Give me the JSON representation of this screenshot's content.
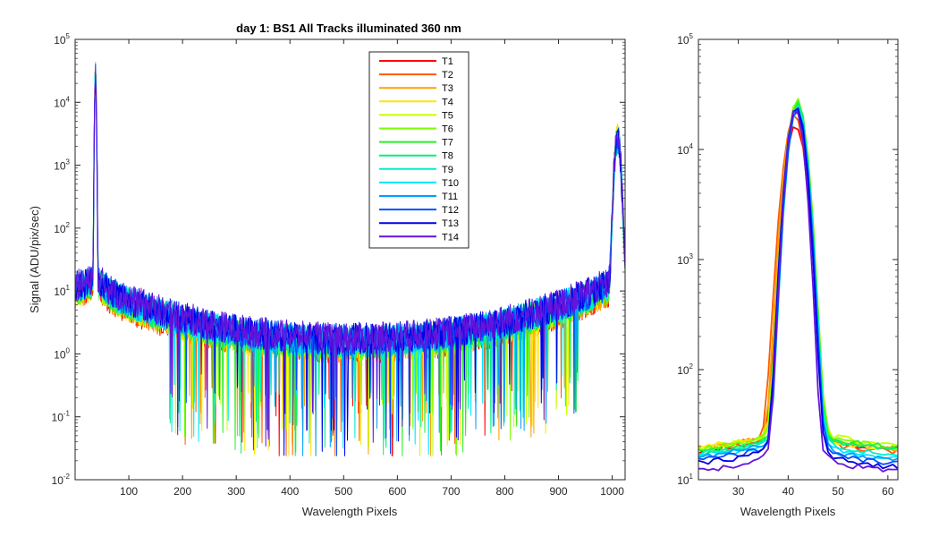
{
  "chart_data": [
    {
      "type": "line",
      "title": "day 1: BS1   All Tracks illuminated   360 nm",
      "xlabel": "Wavelength Pixels",
      "ylabel": "Signal (ADU/pix/sec)",
      "xlim": [
        0,
        1024
      ],
      "ylim": [
        0.01,
        100000
      ],
      "yscale": "log",
      "xticks": [
        100,
        200,
        300,
        400,
        500,
        600,
        700,
        800,
        900,
        1000
      ],
      "yticks": [
        {
          "base": "10",
          "exp": "-2"
        },
        {
          "base": "10",
          "exp": "-1"
        },
        {
          "base": "10",
          "exp": "0"
        },
        {
          "base": "10",
          "exp": "1"
        },
        {
          "base": "10",
          "exp": "2"
        },
        {
          "base": "10",
          "exp": "3"
        },
        {
          "base": "10",
          "exp": "4"
        },
        {
          "base": "10",
          "exp": "5"
        }
      ],
      "legend_position": "top-center",
      "series": [
        {
          "name": "T1",
          "color": "#ff0000"
        },
        {
          "name": "T2",
          "color": "#ff5a00"
        },
        {
          "name": "T3",
          "color": "#ffa000"
        },
        {
          "name": "T4",
          "color": "#ffe600"
        },
        {
          "name": "T5",
          "color": "#c8ff00"
        },
        {
          "name": "T6",
          "color": "#78ff00"
        },
        {
          "name": "T7",
          "color": "#28f028"
        },
        {
          "name": "T8",
          "color": "#00f078"
        },
        {
          "name": "T9",
          "color": "#00f0c8"
        },
        {
          "name": "T10",
          "color": "#00e6ff"
        },
        {
          "name": "T11",
          "color": "#00a0ff"
        },
        {
          "name": "T12",
          "color": "#0050ff"
        },
        {
          "name": "T13",
          "color": "#0000e6"
        },
        {
          "name": "T14",
          "color": "#6414dc"
        }
      ],
      "features": {
        "peak_left": {
          "x": 38,
          "y": 26000
        },
        "peak_right": {
          "x": 1010,
          "y": 2600
        },
        "baseline_edges": 10,
        "baseline_center": 1.5,
        "dip_min": 0.024
      }
    },
    {
      "type": "line",
      "title": "",
      "xlabel": "Wavelength Pixels",
      "ylabel": "",
      "xlim": [
        22,
        62
      ],
      "ylim": [
        10,
        100000
      ],
      "yscale": "log",
      "xticks": [
        30,
        40,
        50,
        60
      ],
      "yticks": [
        {
          "base": "10",
          "exp": "1"
        },
        {
          "base": "10",
          "exp": "2"
        },
        {
          "base": "10",
          "exp": "3"
        },
        {
          "base": "10",
          "exp": "4"
        },
        {
          "base": "10",
          "exp": "5"
        }
      ],
      "series": [
        {
          "name": "T1",
          "peak_x": 41.5,
          "peak_y": 16500,
          "left_base": 18,
          "right_base": 19,
          "width": 2.1
        },
        {
          "name": "T2",
          "peak_x": 41.3,
          "peak_y": 20000,
          "left_base": 19,
          "right_base": 18,
          "width": 2.2
        },
        {
          "name": "T3",
          "peak_x": 41.5,
          "peak_y": 22000,
          "left_base": 19,
          "right_base": 19,
          "width": 2.1
        },
        {
          "name": "T4",
          "peak_x": 41.7,
          "peak_y": 25000,
          "left_base": 20,
          "right_base": 19,
          "width": 2.0
        },
        {
          "name": "T5",
          "peak_x": 41.8,
          "peak_y": 27000,
          "left_base": 19,
          "right_base": 21,
          "width": 2.0
        },
        {
          "name": "T6",
          "peak_x": 41.8,
          "peak_y": 28000,
          "left_base": 19,
          "right_base": 20,
          "width": 2.0
        },
        {
          "name": "T7",
          "peak_x": 41.9,
          "peak_y": 27000,
          "left_base": 18,
          "right_base": 20,
          "width": 1.9
        },
        {
          "name": "T8",
          "peak_x": 41.9,
          "peak_y": 26000,
          "left_base": 17,
          "right_base": 19,
          "width": 1.9
        },
        {
          "name": "T9",
          "peak_x": 41.9,
          "peak_y": 25000,
          "left_base": 17,
          "right_base": 17,
          "width": 1.9
        },
        {
          "name": "T10",
          "peak_x": 41.8,
          "peak_y": 24000,
          "left_base": 16,
          "right_base": 16,
          "width": 1.9
        },
        {
          "name": "T11",
          "peak_x": 41.8,
          "peak_y": 24000,
          "left_base": 16,
          "right_base": 15,
          "width": 1.9
        },
        {
          "name": "T12",
          "peak_x": 41.8,
          "peak_y": 24000,
          "left_base": 15,
          "right_base": 14,
          "width": 1.9
        },
        {
          "name": "T13",
          "peak_x": 41.6,
          "peak_y": 25000,
          "left_base": 14,
          "right_base": 13,
          "width": 1.9
        },
        {
          "name": "T14",
          "peak_x": 41.5,
          "peak_y": 23000,
          "left_base": 12,
          "right_base": 12,
          "width": 1.8
        }
      ]
    }
  ]
}
